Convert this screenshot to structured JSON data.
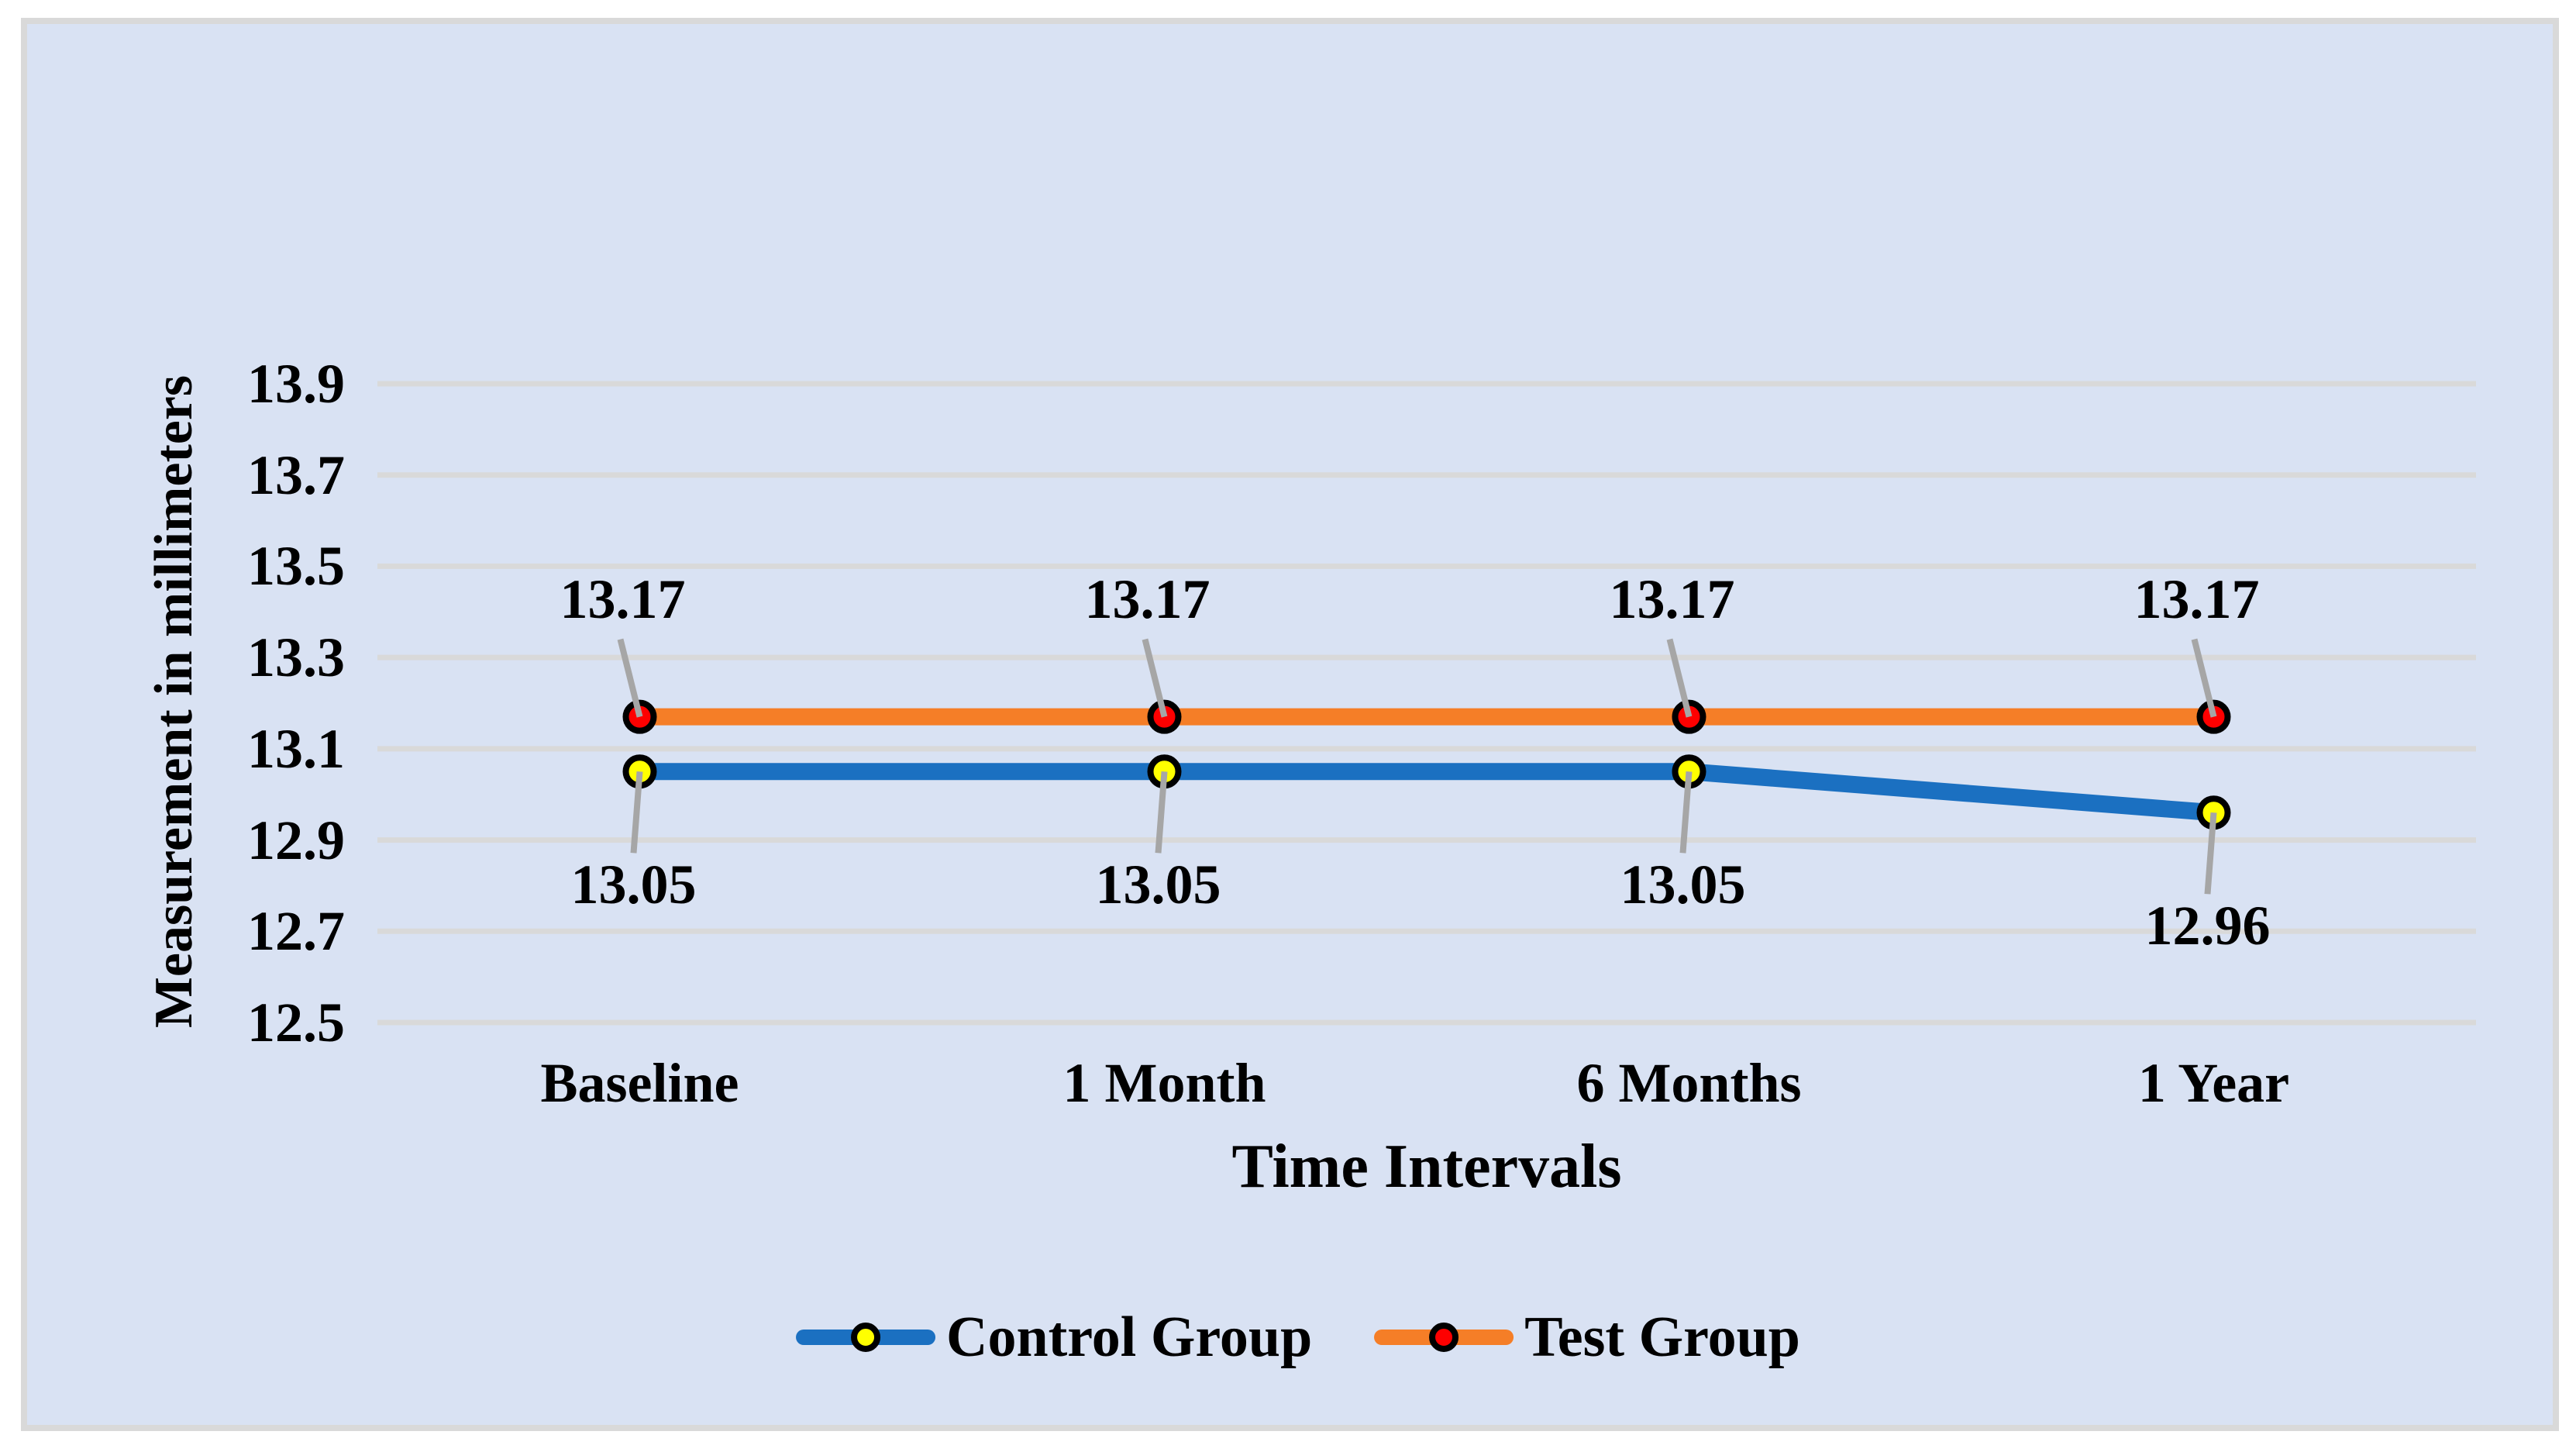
{
  "chart_data": {
    "type": "line",
    "categories": [
      "Baseline",
      "1 Month",
      "6 Months",
      "1 Year"
    ],
    "series": [
      {
        "name": "Control Group",
        "values": [
          13.05,
          13.05,
          13.05,
          12.96
        ],
        "labels": [
          "13.05",
          "13.05",
          "13.05",
          "12.96"
        ],
        "label_side": "below",
        "line_color": "#1b70c1",
        "marker_fill": "#ffff00",
        "marker_outline": "#000000"
      },
      {
        "name": "Test Group",
        "values": [
          13.17,
          13.17,
          13.17,
          13.17
        ],
        "labels": [
          "13.17",
          "13.17",
          "13.17",
          "13.17"
        ],
        "label_side": "above",
        "line_color": "#f57e27",
        "marker_fill": "#fe0000",
        "marker_outline": "#000000"
      }
    ],
    "xlabel": "Time Intervals",
    "ylabel": "Measurement in millimeters",
    "ylim": [
      12.5,
      13.9
    ],
    "yticks": [
      "12.5",
      "12.7",
      "12.9",
      "13.1",
      "13.3",
      "13.5",
      "13.7",
      "13.9"
    ],
    "grid": true,
    "legend_position": "bottom",
    "colors": {
      "plot_background": "#d9e2f3",
      "page_background": "#ffffff",
      "frame_border": "#d9d9d9",
      "gridline": "#d9d9d9",
      "leader_line": "#a6a6a6",
      "text": "#000000"
    }
  }
}
